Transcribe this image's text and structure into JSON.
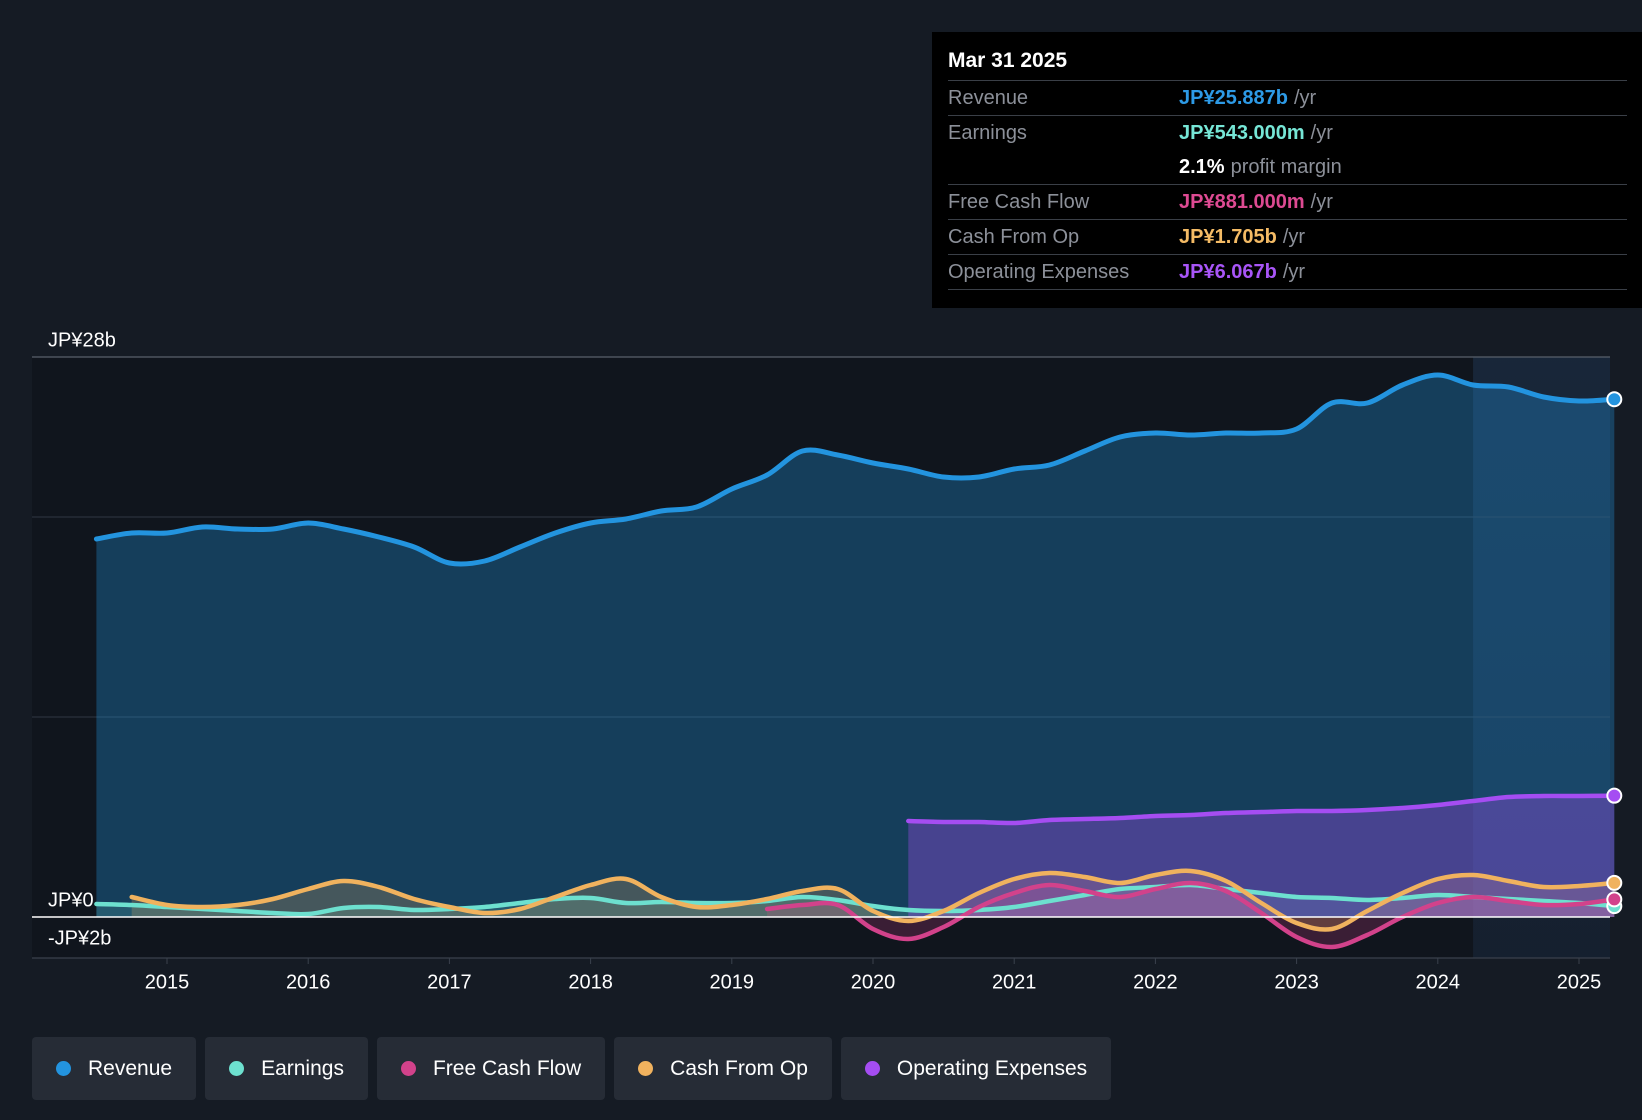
{
  "colors": {
    "background": "#151b24",
    "revenue": "#2394df",
    "earnings": "#6de0cf",
    "free_cash_flow": "#d2428b",
    "cash_from_op": "#f0b25e",
    "operating_expenses": "#a54df2"
  },
  "tooltip": {
    "date": "Mar 31 2025",
    "rows": [
      {
        "label": "Revenue",
        "value": "JP¥25.887b",
        "suffix": "/yr",
        "color": "#2d9ae6"
      },
      {
        "label": "Earnings",
        "value": "JP¥543.000m",
        "suffix": "/yr",
        "color": "#76e6d6"
      },
      {
        "label": "",
        "value": "2.1%",
        "suffix": "profit margin",
        "color": "#ffffff"
      },
      {
        "label": "Free Cash Flow",
        "value": "JP¥881.000m",
        "suffix": "/yr",
        "color": "#dd4a92"
      },
      {
        "label": "Cash From Op",
        "value": "JP¥1.705b",
        "suffix": "/yr",
        "color": "#f4bb65"
      },
      {
        "label": "Operating Expenses",
        "value": "JP¥6.067b",
        "suffix": "/yr",
        "color": "#a855f7"
      }
    ]
  },
  "legend": [
    {
      "label": "Revenue",
      "color": "#2394df"
    },
    {
      "label": "Earnings",
      "color": "#6de0cf"
    },
    {
      "label": "Free Cash Flow",
      "color": "#d2428b"
    },
    {
      "label": "Cash From Op",
      "color": "#f0b25e"
    },
    {
      "label": "Operating Expenses",
      "color": "#a54df2"
    }
  ],
  "chart_data": {
    "type": "area",
    "title": "",
    "xlabel": "",
    "ylabel": "",
    "y_unit": "JP¥b",
    "ylim": [
      -2,
      28
    ],
    "y_tick_labels": [
      {
        "value": 28,
        "label": "JP¥28b"
      },
      {
        "value": 0,
        "label": "JP¥0"
      },
      {
        "value": -2,
        "label": "-JP¥2b"
      }
    ],
    "xlim": [
      2014.0,
      2025.25
    ],
    "x_ticks": [
      2015,
      2016,
      2017,
      2018,
      2019,
      2020,
      2021,
      2022,
      2023,
      2024,
      2025
    ],
    "forecast_region_start": 2024.25,
    "series": [
      {
        "name": "Revenue",
        "key": "revenue",
        "filled": true,
        "points": [
          [
            2014.5,
            18.9
          ],
          [
            2014.75,
            19.2
          ],
          [
            2015.0,
            19.2
          ],
          [
            2015.25,
            19.5
          ],
          [
            2015.5,
            19.4
          ],
          [
            2015.75,
            19.4
          ],
          [
            2016.0,
            19.7
          ],
          [
            2016.25,
            19.4
          ],
          [
            2016.5,
            19.0
          ],
          [
            2016.75,
            18.5
          ],
          [
            2017.0,
            17.7
          ],
          [
            2017.25,
            17.8
          ],
          [
            2017.5,
            18.5
          ],
          [
            2017.75,
            19.2
          ],
          [
            2018.0,
            19.7
          ],
          [
            2018.25,
            19.9
          ],
          [
            2018.5,
            20.3
          ],
          [
            2018.75,
            20.5
          ],
          [
            2019.0,
            21.4
          ],
          [
            2019.25,
            22.1
          ],
          [
            2019.5,
            23.3
          ],
          [
            2019.75,
            23.1
          ],
          [
            2020.0,
            22.7
          ],
          [
            2020.25,
            22.4
          ],
          [
            2020.5,
            22.0
          ],
          [
            2020.75,
            22.0
          ],
          [
            2021.0,
            22.4
          ],
          [
            2021.25,
            22.6
          ],
          [
            2021.5,
            23.3
          ],
          [
            2021.75,
            24.0
          ],
          [
            2022.0,
            24.2
          ],
          [
            2022.25,
            24.1
          ],
          [
            2022.5,
            24.2
          ],
          [
            2022.75,
            24.2
          ],
          [
            2023.0,
            24.4
          ],
          [
            2023.25,
            25.7
          ],
          [
            2023.5,
            25.7
          ],
          [
            2023.75,
            26.6
          ],
          [
            2024.0,
            27.1
          ],
          [
            2024.25,
            26.6
          ],
          [
            2024.5,
            26.5
          ],
          [
            2024.75,
            26.0
          ],
          [
            2025.0,
            25.8
          ],
          [
            2025.25,
            25.887
          ]
        ]
      },
      {
        "name": "Earnings",
        "key": "earnings",
        "filled": true,
        "points": [
          [
            2014.5,
            0.65
          ],
          [
            2014.75,
            0.6
          ],
          [
            2015.0,
            0.5
          ],
          [
            2015.25,
            0.4
          ],
          [
            2015.5,
            0.3
          ],
          [
            2015.75,
            0.2
          ],
          [
            2016.0,
            0.15
          ],
          [
            2016.25,
            0.45
          ],
          [
            2016.5,
            0.5
          ],
          [
            2016.75,
            0.35
          ],
          [
            2017.0,
            0.4
          ],
          [
            2017.25,
            0.5
          ],
          [
            2017.5,
            0.7
          ],
          [
            2017.75,
            0.9
          ],
          [
            2018.0,
            0.95
          ],
          [
            2018.25,
            0.7
          ],
          [
            2018.5,
            0.75
          ],
          [
            2018.75,
            0.7
          ],
          [
            2019.0,
            0.7
          ],
          [
            2019.25,
            0.8
          ],
          [
            2019.5,
            1.0
          ],
          [
            2019.75,
            0.85
          ],
          [
            2020.0,
            0.55
          ],
          [
            2020.25,
            0.35
          ],
          [
            2020.5,
            0.3
          ],
          [
            2020.75,
            0.35
          ],
          [
            2021.0,
            0.5
          ],
          [
            2021.25,
            0.8
          ],
          [
            2021.5,
            1.1
          ],
          [
            2021.75,
            1.4
          ],
          [
            2022.0,
            1.5
          ],
          [
            2022.25,
            1.6
          ],
          [
            2022.5,
            1.4
          ],
          [
            2022.75,
            1.2
          ],
          [
            2023.0,
            1.0
          ],
          [
            2023.25,
            0.95
          ],
          [
            2023.5,
            0.85
          ],
          [
            2023.75,
            0.95
          ],
          [
            2024.0,
            1.1
          ],
          [
            2024.25,
            1.0
          ],
          [
            2024.5,
            0.9
          ],
          [
            2024.75,
            0.8
          ],
          [
            2025.0,
            0.7
          ],
          [
            2025.25,
            0.543
          ]
        ]
      },
      {
        "name": "Free Cash Flow",
        "key": "free_cash_flow",
        "filled": true,
        "points": [
          [
            2019.25,
            0.4
          ],
          [
            2019.5,
            0.6
          ],
          [
            2019.75,
            0.6
          ],
          [
            2020.0,
            -0.6
          ],
          [
            2020.25,
            -1.1
          ],
          [
            2020.5,
            -0.5
          ],
          [
            2020.75,
            0.5
          ],
          [
            2021.0,
            1.2
          ],
          [
            2021.25,
            1.6
          ],
          [
            2021.5,
            1.3
          ],
          [
            2021.75,
            1.0
          ],
          [
            2022.0,
            1.4
          ],
          [
            2022.25,
            1.7
          ],
          [
            2022.5,
            1.3
          ],
          [
            2022.75,
            0.2
          ],
          [
            2023.0,
            -1.0
          ],
          [
            2023.25,
            -1.5
          ],
          [
            2023.5,
            -0.9
          ],
          [
            2023.75,
            0.0
          ],
          [
            2024.0,
            0.7
          ],
          [
            2024.25,
            1.0
          ],
          [
            2024.5,
            0.8
          ],
          [
            2024.75,
            0.6
          ],
          [
            2025.0,
            0.65
          ],
          [
            2025.25,
            0.881
          ]
        ]
      },
      {
        "name": "Cash From Op",
        "key": "cash_from_op",
        "filled": true,
        "points": [
          [
            2014.75,
            1.0
          ],
          [
            2015.0,
            0.6
          ],
          [
            2015.25,
            0.5
          ],
          [
            2015.5,
            0.6
          ],
          [
            2015.75,
            0.9
          ],
          [
            2016.0,
            1.4
          ],
          [
            2016.25,
            1.8
          ],
          [
            2016.5,
            1.5
          ],
          [
            2016.75,
            0.9
          ],
          [
            2017.0,
            0.5
          ],
          [
            2017.25,
            0.2
          ],
          [
            2017.5,
            0.4
          ],
          [
            2017.75,
            1.0
          ],
          [
            2018.0,
            1.6
          ],
          [
            2018.25,
            1.9
          ],
          [
            2018.5,
            1.0
          ],
          [
            2018.75,
            0.5
          ],
          [
            2019.0,
            0.6
          ],
          [
            2019.25,
            0.9
          ],
          [
            2019.5,
            1.3
          ],
          [
            2019.75,
            1.4
          ],
          [
            2020.0,
            0.3
          ],
          [
            2020.25,
            -0.2
          ],
          [
            2020.5,
            0.3
          ],
          [
            2020.75,
            1.2
          ],
          [
            2021.0,
            1.9
          ],
          [
            2021.25,
            2.2
          ],
          [
            2021.5,
            2.0
          ],
          [
            2021.75,
            1.7
          ],
          [
            2022.0,
            2.1
          ],
          [
            2022.25,
            2.3
          ],
          [
            2022.5,
            1.8
          ],
          [
            2022.75,
            0.7
          ],
          [
            2023.0,
            -0.3
          ],
          [
            2023.25,
            -0.6
          ],
          [
            2023.5,
            0.3
          ],
          [
            2023.75,
            1.2
          ],
          [
            2024.0,
            1.9
          ],
          [
            2024.25,
            2.1
          ],
          [
            2024.5,
            1.8
          ],
          [
            2024.75,
            1.5
          ],
          [
            2025.0,
            1.55
          ],
          [
            2025.25,
            1.705
          ]
        ]
      },
      {
        "name": "Operating Expenses",
        "key": "operating_expenses",
        "filled": true,
        "points": [
          [
            2020.25,
            4.8
          ],
          [
            2020.5,
            4.75
          ],
          [
            2020.75,
            4.75
          ],
          [
            2021.0,
            4.7
          ],
          [
            2021.25,
            4.85
          ],
          [
            2021.5,
            4.9
          ],
          [
            2021.75,
            4.95
          ],
          [
            2022.0,
            5.05
          ],
          [
            2022.25,
            5.1
          ],
          [
            2022.5,
            5.2
          ],
          [
            2022.75,
            5.25
          ],
          [
            2023.0,
            5.3
          ],
          [
            2023.25,
            5.3
          ],
          [
            2023.5,
            5.35
          ],
          [
            2023.75,
            5.45
          ],
          [
            2024.0,
            5.6
          ],
          [
            2024.25,
            5.8
          ],
          [
            2024.5,
            6.0
          ],
          [
            2024.75,
            6.05
          ],
          [
            2025.0,
            6.05
          ],
          [
            2025.25,
            6.067
          ]
        ]
      }
    ]
  }
}
